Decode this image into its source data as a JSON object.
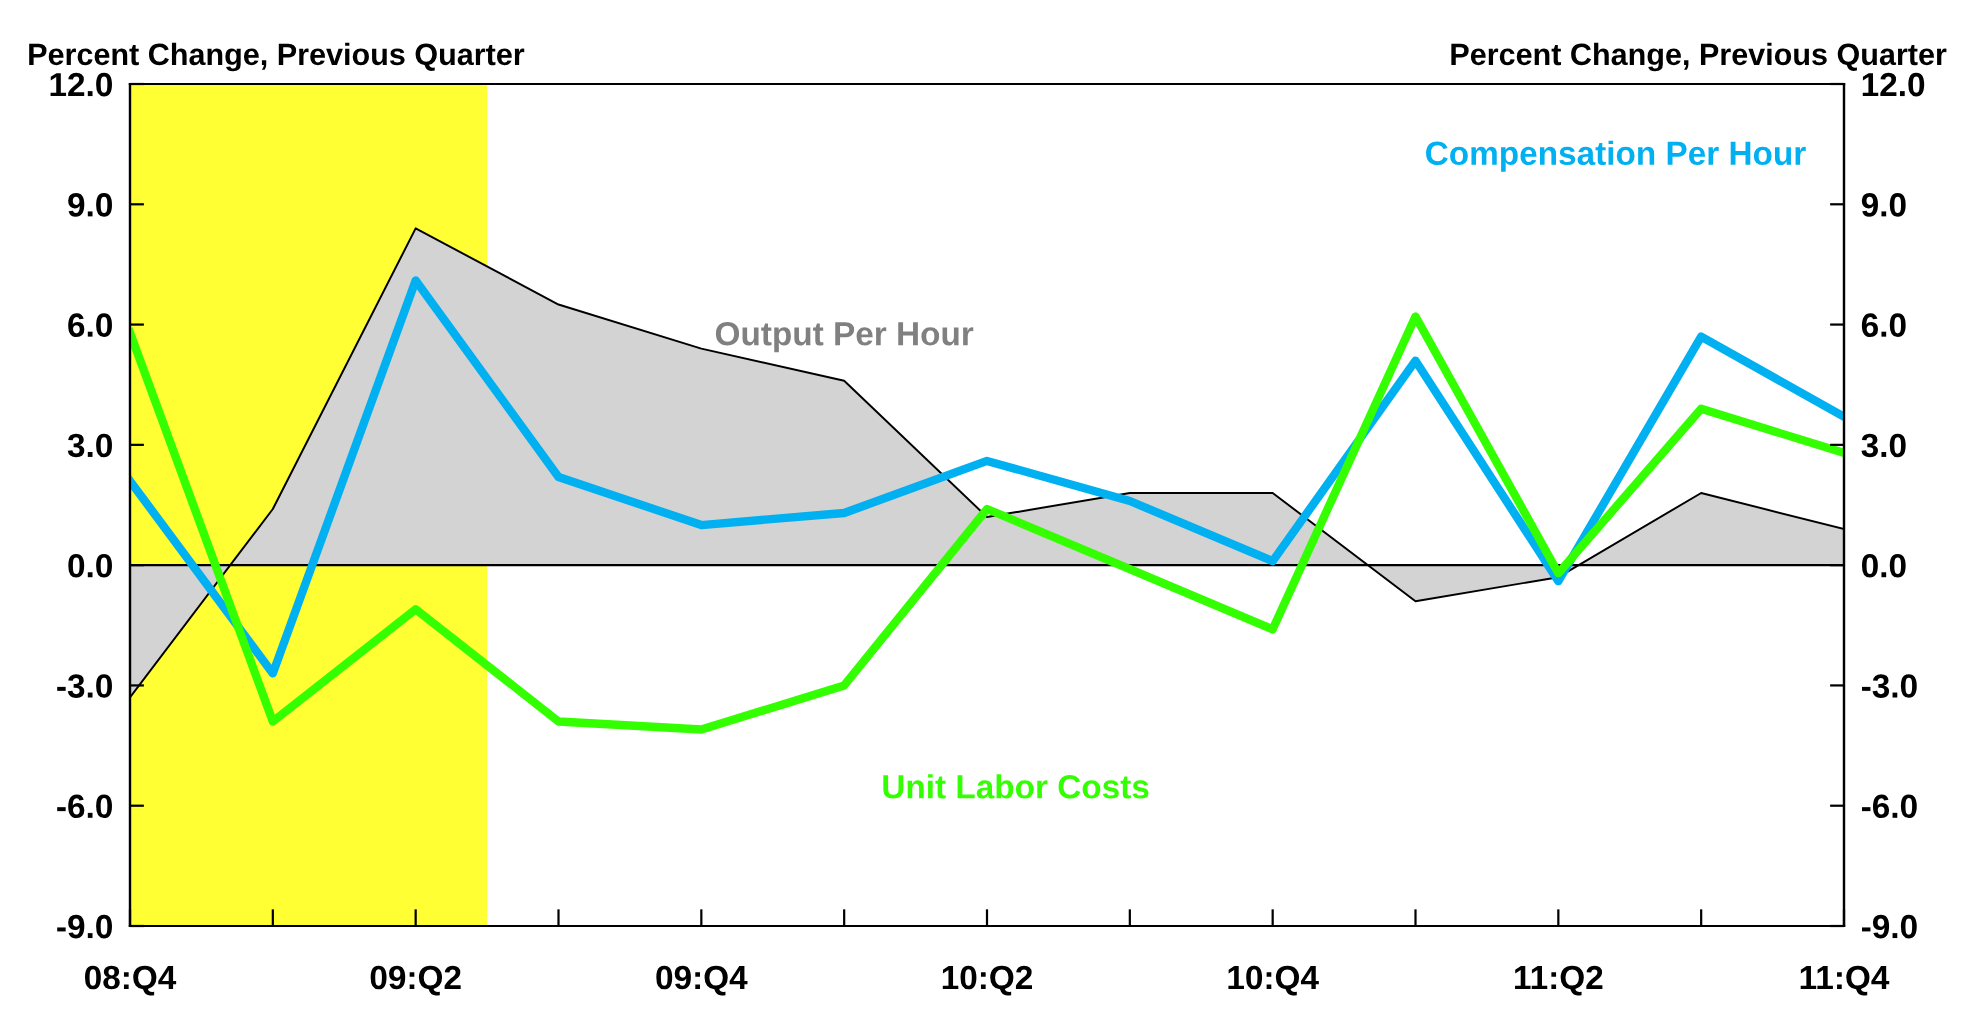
{
  "chart_data": {
    "type": "line",
    "ylabel": "Percent Change, Previous Quarter",
    "y2label": "Percent Change, Previous Quarter",
    "categories": [
      "08:Q4",
      null,
      "09:Q2",
      null,
      "09:Q4",
      null,
      "10:Q2",
      null,
      "10:Q4",
      null,
      "11:Q2",
      null,
      "11:Q4"
    ],
    "series": [
      {
        "name": "Output Per Hour",
        "type": "area",
        "color": "#d3d3d3",
        "values": [
          -3.3,
          1.4,
          8.4,
          6.5,
          5.4,
          4.6,
          1.2,
          1.8,
          1.8,
          -0.9,
          -0.3,
          1.8,
          0.9
        ]
      },
      {
        "name": "Compensation Per Hour",
        "color": "#00b0f0",
        "values": [
          2.1,
          -2.7,
          7.1,
          2.2,
          1.0,
          1.3,
          2.6,
          1.6,
          0.1,
          5.1,
          -0.4,
          5.7,
          3.7
        ]
      },
      {
        "name": "Unit Labor Costs",
        "color": "#33ff00",
        "values": [
          5.8,
          -3.9,
          -1.1,
          -3.9,
          -4.1,
          -3.0,
          1.4,
          -0.1,
          -1.6,
          6.2,
          -0.2,
          3.9,
          2.8
        ]
      }
    ],
    "ylim": [
      -9,
      12
    ],
    "yticks": [
      {
        "value": -9,
        "label": "-9.0"
      },
      {
        "value": -6,
        "label": "-6.0"
      },
      {
        "value": -3,
        "label": "-3.0"
      },
      {
        "value": 0,
        "label": "0.0"
      },
      {
        "value": 3,
        "label": "3.0"
      },
      {
        "value": 6,
        "label": "6.0"
      },
      {
        "value": 9,
        "label": "9.0"
      },
      {
        "value": 12,
        "label": "12.0"
      }
    ],
    "y2lim": [
      -9,
      12
    ],
    "y2ticks": [
      {
        "value": -9,
        "label": "-9.0"
      },
      {
        "value": -6,
        "label": "-6.0"
      },
      {
        "value": -3,
        "label": "-3.0"
      },
      {
        "value": 0,
        "label": "0.0"
      },
      {
        "value": 3,
        "label": "3.0"
      },
      {
        "value": 6,
        "label": "6.0"
      },
      {
        "value": 9,
        "label": "9.0"
      },
      {
        "value": 12,
        "label": "12.0"
      }
    ],
    "ref_lines": [
      {
        "axis": "y",
        "value": 0,
        "color": "#000000"
      }
    ],
    "grid": false,
    "legend": false,
    "marker": "none",
    "line_style": "solid"
  }
}
